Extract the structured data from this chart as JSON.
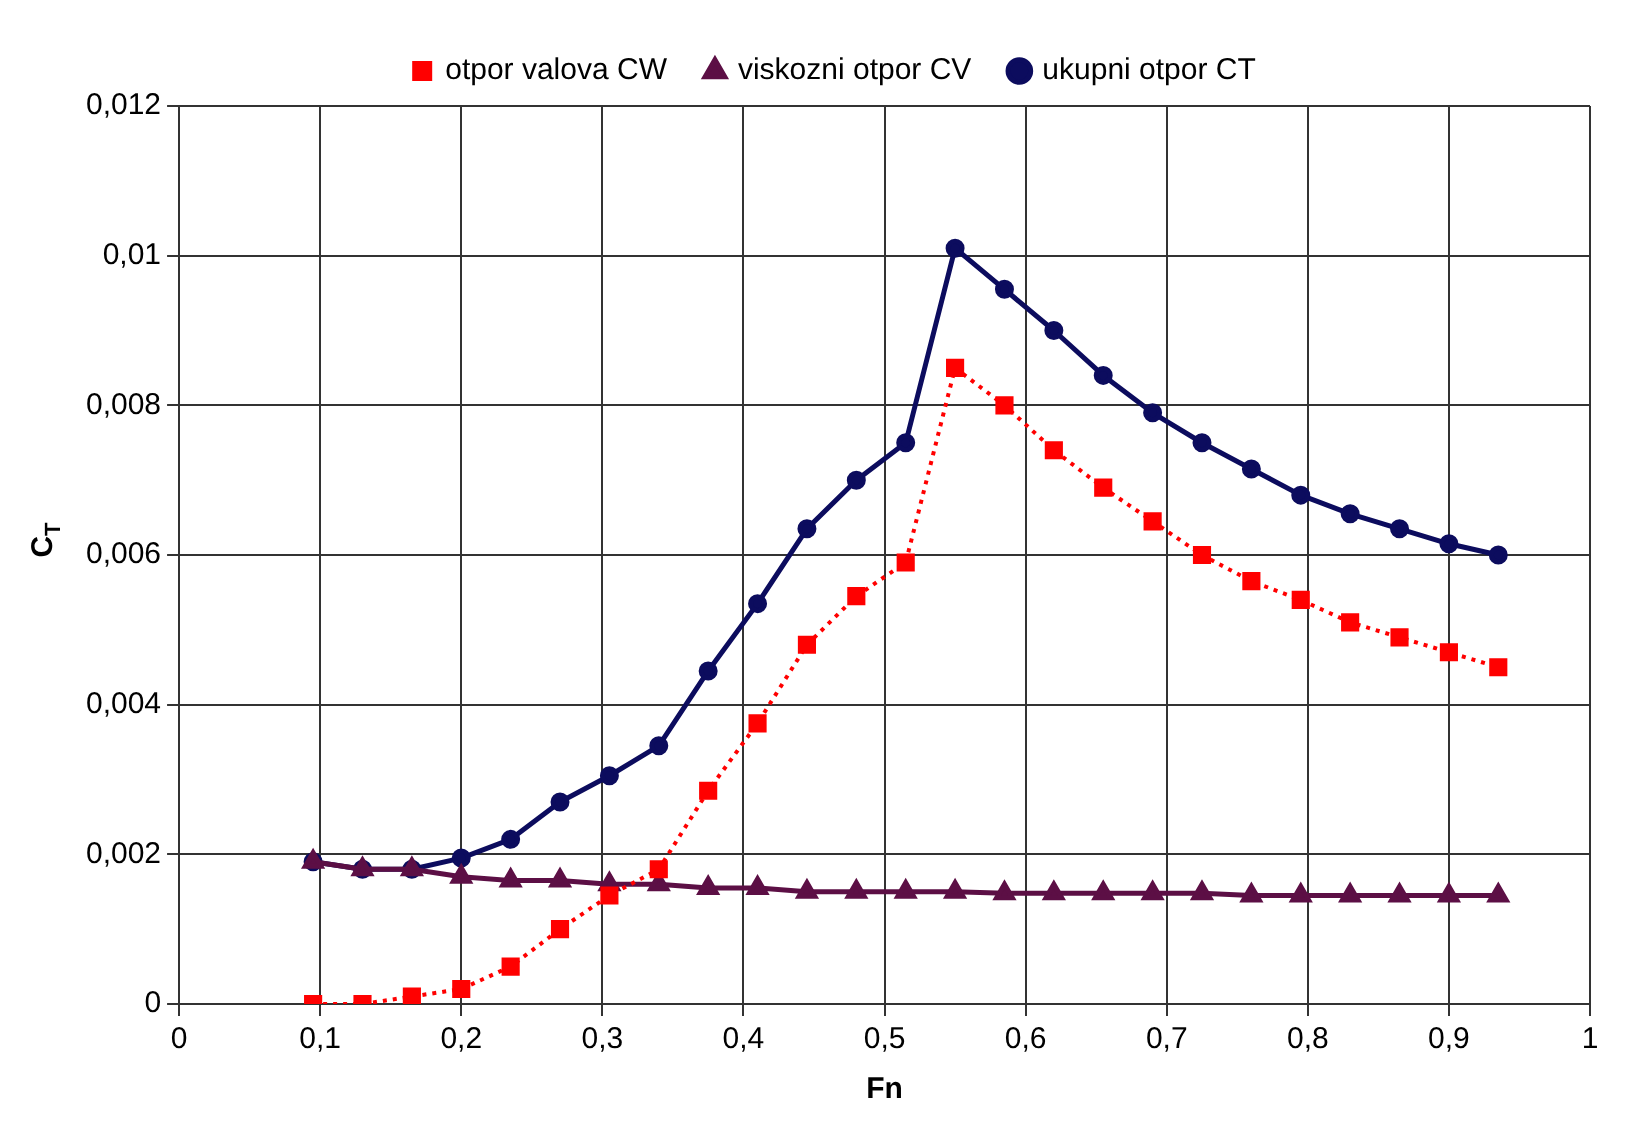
{
  "chart_data": {
    "type": "line",
    "xlabel": "Fn",
    "ylabel": "C$_{T}$",
    "x": [
      0.095,
      0.13,
      0.165,
      0.2,
      0.235,
      0.27,
      0.305,
      0.34,
      0.375,
      0.41,
      0.445,
      0.48,
      0.515,
      0.55,
      0.585,
      0.62,
      0.655,
      0.69,
      0.725,
      0.76,
      0.795,
      0.83,
      0.865,
      0.9,
      0.935
    ],
    "series": [
      {
        "name": "ukupni otpor CT",
        "color": "#0c0c5e",
        "marker": "circle",
        "line_style": "solid",
        "values": [
          0.0019,
          0.0018,
          0.0018,
          0.00195,
          0.0022,
          0.0027,
          0.00305,
          0.00345,
          0.00445,
          0.00535,
          0.00635,
          0.007,
          0.0075,
          0.0101,
          0.00955,
          0.009,
          0.0084,
          0.0079,
          0.0075,
          0.00715,
          0.0068,
          0.00655,
          0.00635,
          0.00615,
          0.006
        ]
      },
      {
        "name": "viskozni otpor CV",
        "color": "#5c0f45",
        "marker": "triangle",
        "line_style": "solid",
        "values": [
          0.0019,
          0.0018,
          0.0018,
          0.0017,
          0.00165,
          0.00165,
          0.0016,
          0.0016,
          0.00155,
          0.00155,
          0.0015,
          0.0015,
          0.0015,
          0.0015,
          0.00148,
          0.00148,
          0.00148,
          0.00148,
          0.00148,
          0.00145,
          0.00145,
          0.00145,
          0.00145,
          0.00145,
          0.00145
        ]
      },
      {
        "name": "otpor valova CW",
        "color": "#ff0000",
        "marker": "square",
        "line_style": "dotted",
        "values": [
          0,
          0,
          0.0001,
          0.0002,
          0.0005,
          0.001,
          0.00145,
          0.0018,
          0.00285,
          0.00375,
          0.0048,
          0.00545,
          0.0059,
          0.0085,
          0.008,
          0.0074,
          0.0069,
          0.00645,
          0.006,
          0.00565,
          0.0054,
          0.0051,
          0.0049,
          0.0047,
          0.0045
        ]
      }
    ],
    "xlim": [
      0,
      1
    ],
    "ylim": [
      0,
      0.012
    ],
    "xticks": [
      0,
      {
        "value": 0.1,
        "label": "0,1"
      },
      {
        "value": 0.2,
        "label": "0,2"
      },
      {
        "value": 0.3,
        "label": "0,3"
      },
      {
        "value": 0.4,
        "label": "0,4"
      },
      {
        "value": 0.5,
        "label": "0,5"
      },
      {
        "value": 0.6,
        "label": "0,6"
      },
      {
        "value": 0.7,
        "label": "0,7"
      },
      {
        "value": 0.8,
        "label": "0,8"
      },
      {
        "value": 0.9,
        "label": "0,9"
      },
      1
    ],
    "yticks": [
      0,
      {
        "value": 0.002,
        "label": "0,002"
      },
      {
        "value": 0.004,
        "label": "0,004"
      },
      {
        "value": 0.006,
        "label": "0,006"
      },
      {
        "value": 0.008,
        "label": "0,008"
      },
      {
        "value": 0.01,
        "label": "0,01"
      },
      {
        "value": 0.012,
        "label": "0,012"
      }
    ],
    "grid": true,
    "legend": "top"
  }
}
